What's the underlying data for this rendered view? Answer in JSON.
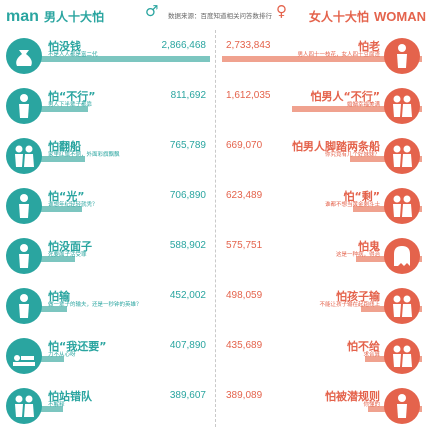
{
  "header": {
    "man_word": "man",
    "man_title": "男人十大怕",
    "woman_title": "女人十大怕",
    "woman_word": "WOMAN",
    "source": "数据来源：百度知道相关问答数排行",
    "male_symbol": "♂",
    "female_symbol": "♀",
    "male_color": "#2aa5a0",
    "female_color": "#e4634c"
  },
  "chart_data": [
    {
      "type": "bar",
      "title": "男人十大怕",
      "categories": [
        "怕没钱",
        "怕“不行”",
        "怕翻船",
        "怕“光”",
        "怕没面子",
        "怕输",
        "怕“我还要”",
        "怕站错队"
      ],
      "subtitles": [
        "不是人人都是富二代",
        "男人下半辈子都靠",
        "家里红旗不倒，外面彩旗飘飘",
        "谁想年纪轻轻就秃？",
        "死要面子活受罪",
        "做一辈子的输夫，还是一秒钟的英雄？",
        "力不从心呀",
        "不解释"
      ],
      "values": [
        2866468,
        811692,
        765789,
        706890,
        588902,
        452002,
        407890,
        389607
      ],
      "display_values": [
        "2,866,468",
        "811,692",
        "765,789",
        "706,890",
        "588,902",
        "452,002",
        "407,890",
        "389,607"
      ],
      "icons": [
        "money-bag-icon",
        "man-icon",
        "couple-icon",
        "bald-man-icon",
        "man-icon",
        "trophy-man-icon",
        "bed-icon",
        "group-icon"
      ],
      "color": "#2aa5a0"
    },
    {
      "type": "bar",
      "title": "女人十大怕",
      "categories": [
        "怕老",
        "怕男人“不行”",
        "怕男人脚踏两条船",
        "怕“剩”",
        "怕鬼",
        "怕孩子输",
        "怕不给",
        "怕被潜规则"
      ],
      "subtitles": [
        "男人四十一枝花，女人四十豆腐渣",
        "婚姻幸福美满",
        "你究竟有几个好妹妹？",
        "谁都不想当黄金剩斗士",
        "这是一种病，得治",
        "不能让孩子输在起跑线上",
        "求合算",
        "你懂的"
      ],
      "values": [
        2733843,
        1612035,
        669070,
        623489,
        575751,
        498059,
        435689,
        389089
      ],
      "display_values": [
        "2,733,843",
        "1,612,035",
        "669,070",
        "623,489",
        "575,751",
        "498,059",
        "435,689",
        "389,089"
      ],
      "icons": [
        "old-woman-icon",
        "couple-icon",
        "love-triangle-icon",
        "single-women-icon",
        "ghost-icon",
        "woman-child-icon",
        "woman-man-icon",
        "boss-woman-icon"
      ],
      "color": "#e4634c"
    }
  ]
}
